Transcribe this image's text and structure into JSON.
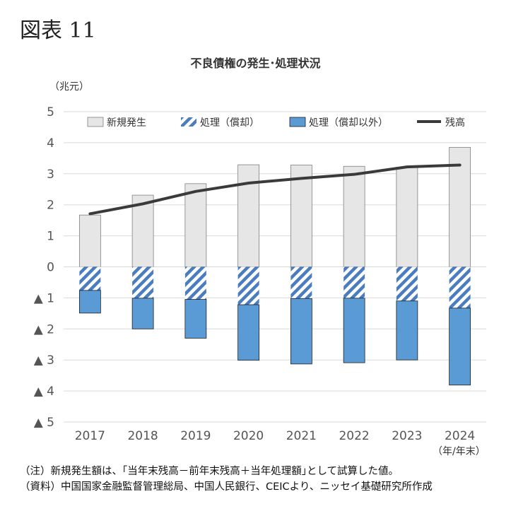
{
  "figure_label": "図表 11",
  "chart_data": {
    "type": "bar",
    "title": "不良債権の発生･処理状況",
    "ylabel": "（兆元）",
    "xlabel": "（年/年末）",
    "categories": [
      "2017",
      "2018",
      "2019",
      "2020",
      "2021",
      "2022",
      "2023",
      "2024"
    ],
    "ylim": [
      -5,
      5
    ],
    "yticks": [
      5,
      4,
      3,
      2,
      1,
      0,
      -1,
      -2,
      -3,
      -4,
      -5
    ],
    "ytick_labels": [
      "5",
      "4",
      "3",
      "2",
      "1",
      "0",
      "▲ 1",
      "▲ 2",
      "▲ 3",
      "▲ 4",
      "▲ 5"
    ],
    "grid": true,
    "legend_position": "top",
    "series": [
      {
        "name": "新規発生",
        "kind": "bar",
        "color": "#e6e6e6",
        "values": [
          1.67,
          2.31,
          2.68,
          3.29,
          3.28,
          3.24,
          3.21,
          3.85
        ]
      },
      {
        "name": "処理（償却）",
        "kind": "bar-hatched",
        "color": "#4a7cc0",
        "values": [
          -0.76,
          -1.01,
          -1.05,
          -1.22,
          -1.02,
          -1.01,
          -1.1,
          -1.33
        ]
      },
      {
        "name": "処理（償却以外）",
        "kind": "bar",
        "color": "#5b9bd5",
        "values": [
          -0.73,
          -0.99,
          -1.25,
          -1.79,
          -2.11,
          -2.08,
          -1.9,
          -2.48
        ]
      },
      {
        "name": "残高",
        "kind": "line",
        "color": "#3a3a3a",
        "values": [
          1.71,
          2.03,
          2.43,
          2.7,
          2.85,
          2.98,
          3.22,
          3.28
        ]
      }
    ]
  },
  "notes": {
    "note1": "（注）新規発生額は、｢当年末残高－前年末残高＋当年処理額｣として試算した値。",
    "note2": "（資料）中国国家金融監督管理総局、中国人民銀行、CEICより、ニッセイ基礎研究所作成"
  }
}
